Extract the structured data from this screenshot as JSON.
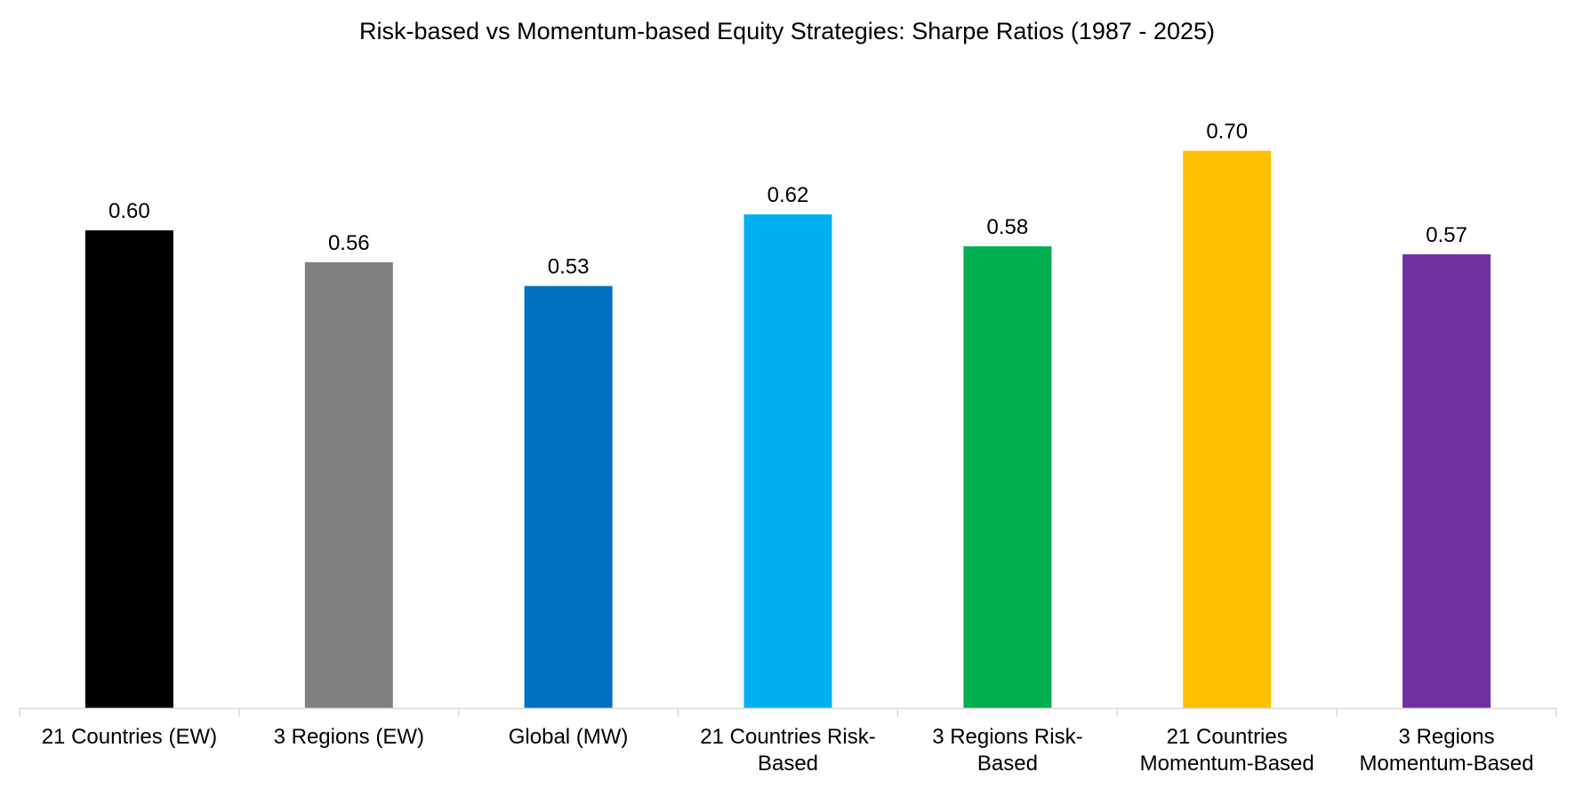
{
  "chart_data": {
    "type": "bar",
    "title": "Risk-based vs Momentum-based Equity Strategies: Sharpe Ratios (1987 - 2025)",
    "xlabel": "",
    "ylabel": "",
    "ylim": [
      0,
      0.7
    ],
    "grid": false,
    "legend": "none",
    "categories": [
      [
        "21 Countries (EW)"
      ],
      [
        "3 Regions (EW)"
      ],
      [
        "Global (MW)"
      ],
      [
        "21 Countries Risk-",
        "Based"
      ],
      [
        "3 Regions Risk-",
        "Based"
      ],
      [
        "21 Countries",
        "Momentum-Based"
      ],
      [
        "3 Regions",
        "Momentum-Based"
      ]
    ],
    "values": [
      0.6,
      0.56,
      0.53,
      0.62,
      0.58,
      0.7,
      0.57
    ],
    "data_labels": [
      "0.60",
      "0.56",
      "0.53",
      "0.62",
      "0.58",
      "0.70",
      "0.57"
    ],
    "colors": [
      "#000000",
      "#808080",
      "#0070C0",
      "#00B0F0",
      "#00B050",
      "#FFC000",
      "#7030A0"
    ],
    "axis_color": "#D9D9D9"
  }
}
